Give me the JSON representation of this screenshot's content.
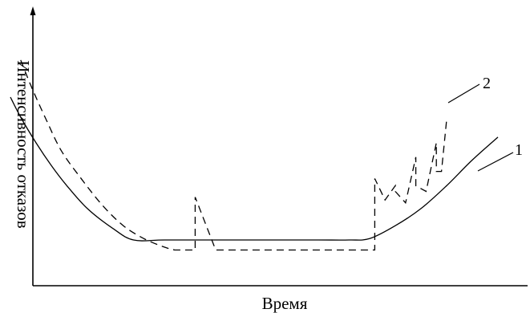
{
  "chart_data": {
    "type": "line",
    "title": "",
    "xlabel": "Время",
    "ylabel": "Интенсивность отказов",
    "grid": false,
    "legend": "none",
    "xlim": [
      0,
      100
    ],
    "ylim": [
      0,
      100
    ],
    "series": [
      {
        "name": "1",
        "style": "solid",
        "x": [
          0,
          2,
          5,
          8,
          11,
          15,
          20,
          24,
          30,
          40,
          50,
          60,
          66,
          70,
          75,
          80,
          85,
          90,
          95
        ],
        "y": [
          66,
          59,
          50,
          42,
          35,
          27,
          20,
          16,
          16,
          16,
          16,
          16,
          16,
          16.5,
          21,
          27,
          35,
          44,
          52
        ]
      },
      {
        "name": "2",
        "style": "dashed",
        "x": [
          2,
          4,
          7,
          10,
          14,
          18,
          22,
          26,
          30,
          32,
          36,
          36,
          40,
          42,
          50,
          60,
          71,
          71,
          73,
          75,
          75,
          77,
          79,
          79,
          81,
          83,
          83,
          84,
          85
        ],
        "y": [
          79,
          70,
          58,
          47,
          37,
          28,
          21,
          16.5,
          13.5,
          12.5,
          12.5,
          31,
          12.5,
          12.5,
          12.5,
          12.5,
          12.5,
          37.5,
          30,
          35,
          33,
          29,
          45,
          35,
          33,
          50,
          40,
          40,
          58
        ]
      }
    ],
    "annotations": [
      "1",
      "2"
    ]
  }
}
